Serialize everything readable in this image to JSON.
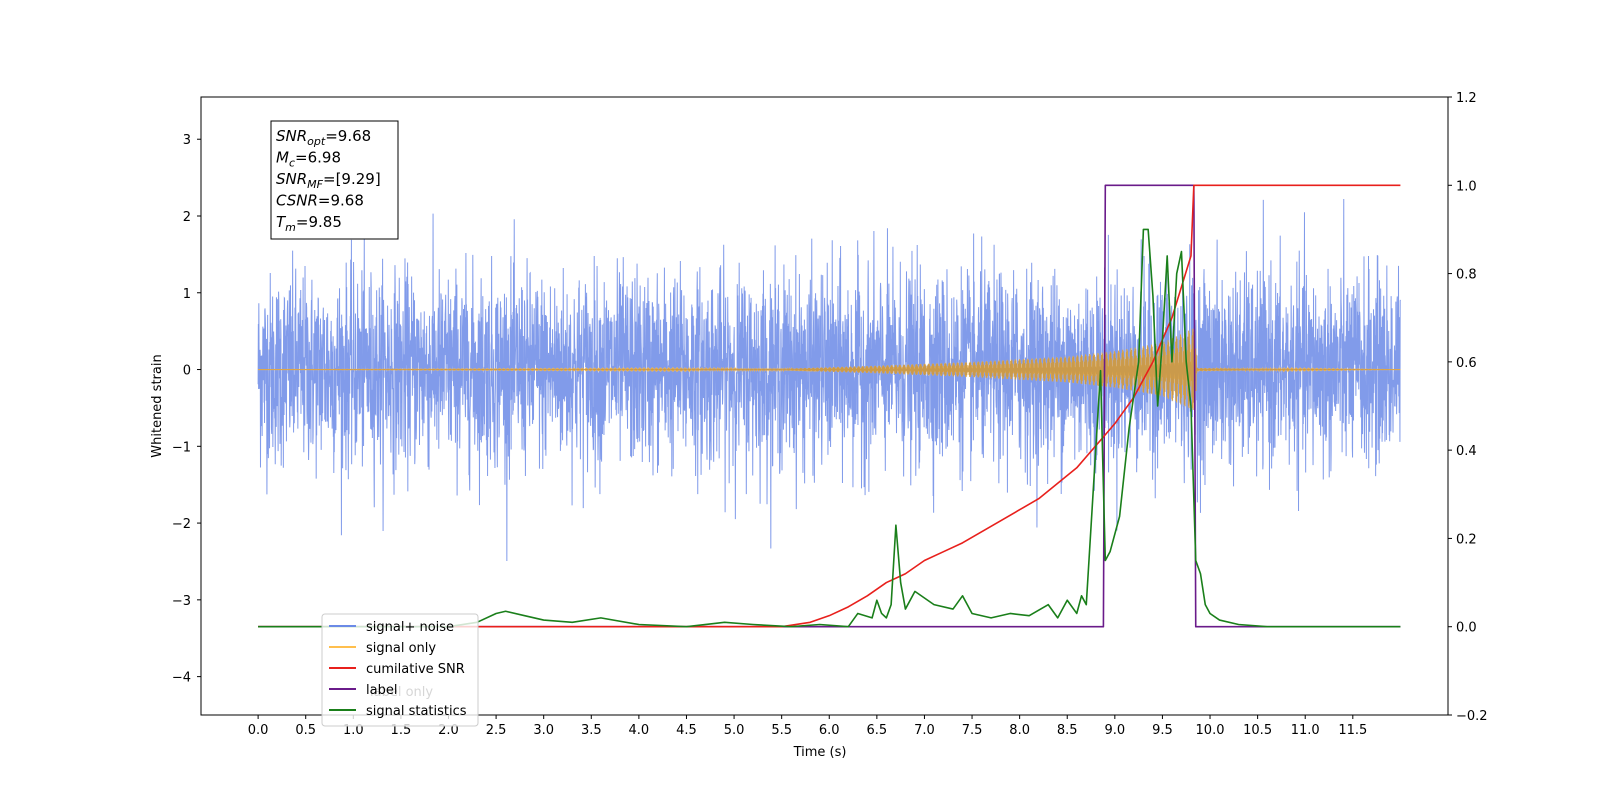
{
  "chart_data": {
    "type": "line",
    "title": "",
    "xlabel": "Time (s)",
    "ylabel": "Whitened strain",
    "xlim": [
      -0.6,
      12.5
    ],
    "ylim": [
      -4.5,
      3.55
    ],
    "y2lim": [
      -0.2,
      1.2
    ],
    "x_ticks": [
      "0.0",
      "0.5",
      "1.0",
      "1.5",
      "2.0",
      "2.5",
      "3.0",
      "3.5",
      "4.0",
      "4.5",
      "5.0",
      "5.5",
      "6.0",
      "6.5",
      "7.0",
      "7.5",
      "8.0",
      "8.5",
      "9.0",
      "9.5",
      "10.0",
      "10.5",
      "11.0",
      "11.5"
    ],
    "y_ticks": [
      "3",
      "2",
      "1",
      "0",
      "−1",
      "−2",
      "−3",
      "−4"
    ],
    "y_tick_values": [
      3,
      2,
      1,
      0,
      -1,
      -2,
      -3,
      -4
    ],
    "y2_ticks": [
      "1.2",
      "1.0",
      "0.8",
      "0.6",
      "0.4",
      "0.2",
      "0.0",
      "−0.2"
    ],
    "y2_tick_values": [
      1.2,
      1.0,
      0.8,
      0.6,
      0.4,
      0.2,
      0.0,
      -0.2
    ],
    "grid": false,
    "legend_position": "lower-left",
    "annotation": {
      "lines": [
        {
          "sym": "SNR",
          "sub": "opt",
          "value": "=9.68"
        },
        {
          "sym": "M",
          "sub": "c",
          "value": "=6.98"
        },
        {
          "sym": "SNR",
          "sub": "MF",
          "value": "=[9.29]"
        },
        {
          "sym": "CSNR",
          "sub": "",
          "value": "=9.68"
        },
        {
          "sym": "T",
          "sub": "m",
          "value": "=9.85"
        }
      ]
    },
    "series": [
      {
        "name": "signal+ noise",
        "color": "#6b8ae6",
        "axis": "left",
        "kind": "noise",
        "t_start": 0.0,
        "t_end": 12.0,
        "amplitude": 1.35
      },
      {
        "name": "signal only",
        "color": "#ffbf4d",
        "axis": "left",
        "kind": "chirp",
        "t_start": 0.0,
        "t_end": 9.85,
        "envelope": [
          [
            0.0,
            0.0
          ],
          [
            5.5,
            0.01
          ],
          [
            6.5,
            0.05
          ],
          [
            7.5,
            0.1
          ],
          [
            8.5,
            0.17
          ],
          [
            9.0,
            0.24
          ],
          [
            9.5,
            0.35
          ],
          [
            9.85,
            0.55
          ],
          [
            9.86,
            0.02
          ],
          [
            10.5,
            0.01
          ],
          [
            12.0,
            0.0
          ]
        ]
      },
      {
        "name": "cumilative SNR",
        "color": "#e8201c",
        "axis": "right",
        "x": [
          0.0,
          5.5,
          5.8,
          6.0,
          6.2,
          6.4,
          6.6,
          6.8,
          7.0,
          7.2,
          7.4,
          7.6,
          7.8,
          8.0,
          8.2,
          8.4,
          8.6,
          8.8,
          9.0,
          9.2,
          9.4,
          9.6,
          9.8,
          9.83,
          12.0
        ],
        "y": [
          0.0,
          0.0,
          0.01,
          0.025,
          0.045,
          0.07,
          0.1,
          0.12,
          0.15,
          0.17,
          0.19,
          0.215,
          0.24,
          0.265,
          0.29,
          0.325,
          0.36,
          0.41,
          0.46,
          0.52,
          0.6,
          0.7,
          0.84,
          1.0,
          1.0
        ]
      },
      {
        "name": "label",
        "color": "#6a1b8a",
        "axis": "right",
        "x": [
          0.0,
          8.88,
          8.9,
          9.83,
          9.85,
          12.0
        ],
        "y": [
          0.0,
          0.0,
          1.0,
          1.0,
          0.0,
          0.0
        ]
      },
      {
        "name": "label only",
        "color": "#800080",
        "axis": "right",
        "hidden_in_plot": true,
        "x": [],
        "y": []
      },
      {
        "name": "signal statistics",
        "color": "#1a7f1a",
        "axis": "right",
        "x": [
          0.0,
          2.0,
          2.3,
          2.5,
          2.6,
          2.8,
          3.0,
          3.3,
          3.6,
          4.0,
          4.5,
          4.9,
          5.2,
          5.6,
          5.9,
          6.2,
          6.3,
          6.45,
          6.5,
          6.55,
          6.6,
          6.65,
          6.7,
          6.75,
          6.8,
          6.9,
          7.1,
          7.3,
          7.4,
          7.45,
          7.5,
          7.7,
          7.9,
          8.1,
          8.3,
          8.4,
          8.5,
          8.6,
          8.65,
          8.7,
          8.85,
          8.87,
          8.9,
          8.95,
          9.05,
          9.15,
          9.25,
          9.3,
          9.35,
          9.4,
          9.45,
          9.5,
          9.55,
          9.6,
          9.65,
          9.7,
          9.75,
          9.8,
          9.85,
          9.9,
          9.95,
          10.0,
          10.1,
          10.3,
          10.6,
          11.0,
          12.0
        ],
        "y": [
          0.0,
          0.0,
          0.01,
          0.03,
          0.035,
          0.025,
          0.015,
          0.01,
          0.02,
          0.005,
          0.0,
          0.01,
          0.005,
          0.0,
          0.005,
          0.0,
          0.03,
          0.02,
          0.06,
          0.03,
          0.02,
          0.05,
          0.23,
          0.1,
          0.04,
          0.08,
          0.05,
          0.04,
          0.07,
          0.05,
          0.03,
          0.02,
          0.03,
          0.025,
          0.05,
          0.02,
          0.06,
          0.03,
          0.07,
          0.05,
          0.58,
          0.4,
          0.15,
          0.17,
          0.25,
          0.45,
          0.6,
          0.9,
          0.9,
          0.75,
          0.5,
          0.65,
          0.84,
          0.6,
          0.8,
          0.85,
          0.6,
          0.5,
          0.15,
          0.12,
          0.05,
          0.03,
          0.015,
          0.005,
          0.0,
          0.0,
          0.0
        ]
      }
    ]
  },
  "legend": {
    "items": [
      {
        "label": "signal+ noise",
        "color": "#6b8ae6"
      },
      {
        "label": "signal only",
        "color": "#ffbf4d"
      },
      {
        "label": "cumilative SNR",
        "color": "#e8201c"
      },
      {
        "label": "label",
        "color": "#6a1b8a"
      },
      {
        "label": "signal statistics",
        "color": "#1a7f1a"
      }
    ]
  }
}
